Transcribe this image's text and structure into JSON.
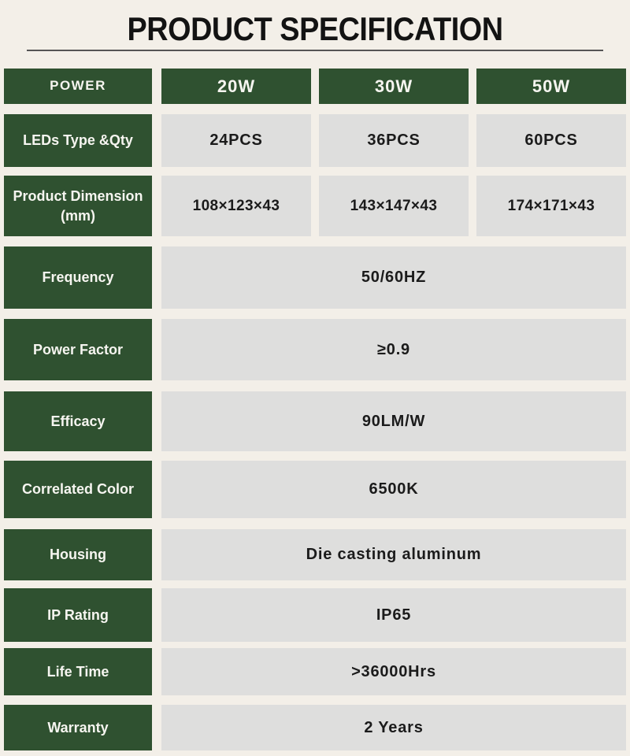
{
  "title": "PRODUCT SPECIFICATION",
  "theme": {
    "page_bg": "#F3EFE8",
    "header_green": "#2F5130",
    "cell_gray": "#DEDEDD",
    "label_text": "#F6F5F0",
    "value_text": "#1B1B1B",
    "title_text": "#131313",
    "rule_color": "#555555"
  },
  "table": {
    "rows": [
      {
        "label": "POWER",
        "values": [
          "20W",
          "30W",
          "50W"
        ]
      },
      {
        "label": "LEDs Type &Qty",
        "values": [
          "24PCS",
          "36PCS",
          "60PCS"
        ]
      },
      {
        "label": "Product Dimension (mm)",
        "values": [
          "108×123×43",
          "143×147×43",
          "174×171×43"
        ]
      },
      {
        "label": "Frequency",
        "values": [
          "50/60HZ"
        ]
      },
      {
        "label": "Power Factor",
        "values": [
          "≥0.9"
        ]
      },
      {
        "label": "Efficacy",
        "values": [
          "90LM/W"
        ]
      },
      {
        "label": "Correlated Color",
        "values": [
          "6500K"
        ]
      },
      {
        "label": "Housing",
        "values": [
          "Die casting aluminum"
        ]
      },
      {
        "label": "IP Rating",
        "values": [
          "IP65"
        ]
      },
      {
        "label": "Life Time",
        "values": [
          ">36000Hrs"
        ]
      },
      {
        "label": "Warranty",
        "values": [
          "2 Years"
        ]
      }
    ]
  }
}
